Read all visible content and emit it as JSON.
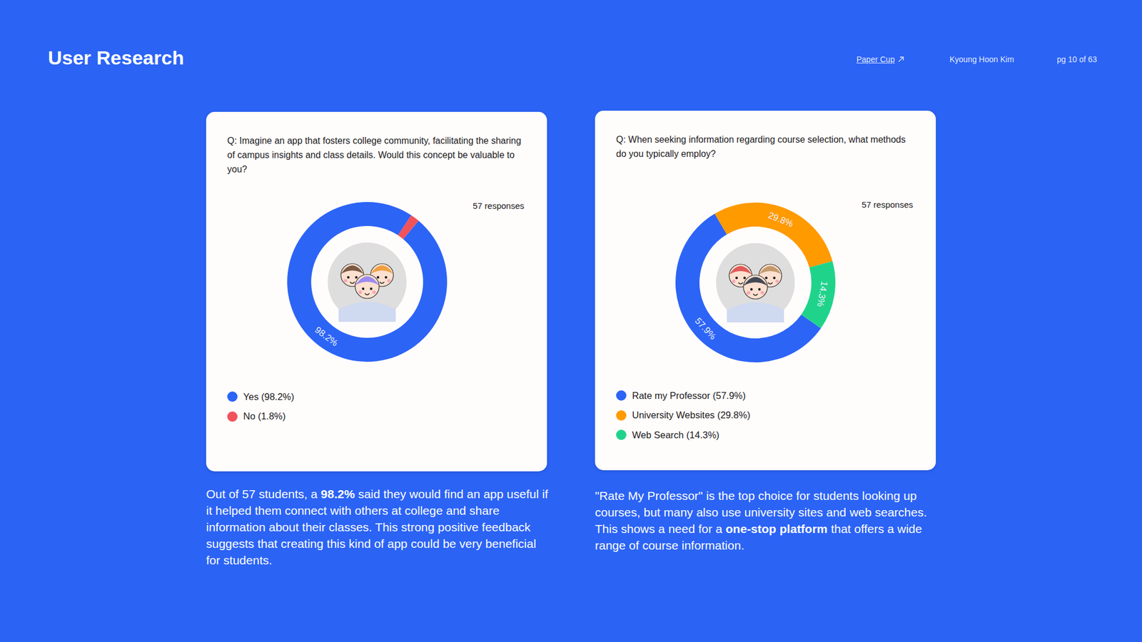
{
  "header": {
    "title": "User Research",
    "link": "Paper Cup",
    "author": "Kyoung Hoon Kim",
    "page": "pg 10 of 63"
  },
  "chart_data": [
    {
      "type": "pie",
      "title": "Q: Imagine an app that fosters college community, facilitating the sharing of campus insights and class details. Would this concept be valuable to you?",
      "subtitle": "57 responses",
      "categories": [
        "Yes (98.2%)",
        "No (1.8%)"
      ],
      "values": [
        98.2,
        1.8
      ],
      "value_labels": [
        "98.2%",
        null
      ],
      "colors": [
        "#2c64f6",
        "#f2525a"
      ],
      "data_labels": true,
      "legend": "bottom"
    },
    {
      "type": "pie",
      "title": "Q: When seeking information regarding course selection, what methods do you typically employ?",
      "subtitle": "57 responses",
      "categories": [
        "Rate my Professor (57.9%)",
        "University Websites (29.8%)",
        "Web Search (14.3%)"
      ],
      "values": [
        57.9,
        29.8,
        14.3
      ],
      "value_labels": [
        "57.9%",
        "29.8%",
        "14.3%"
      ],
      "colors": [
        "#2c64f6",
        "#ff9a00",
        "#1fd48a"
      ],
      "data_labels": true,
      "legend": "bottom"
    }
  ],
  "captions": [
    [
      {
        "text": "Out of 57 students, a "
      },
      {
        "text": "98.2%",
        "bold": true
      },
      {
        "text": " said they would find an app useful if it helped them connect with others at college and share information about their classes. This strong positive feedback suggests that creating this kind of app could be very beneficial for students."
      }
    ],
    [
      {
        "text": "\"Rate My Professor\" is the top choice for students looking up courses, but many also use university sites and web searches. This shows a need for a "
      },
      {
        "text": "one-stop platform",
        "bold": true
      },
      {
        "text": " that offers a wide range of course information."
      }
    ]
  ]
}
